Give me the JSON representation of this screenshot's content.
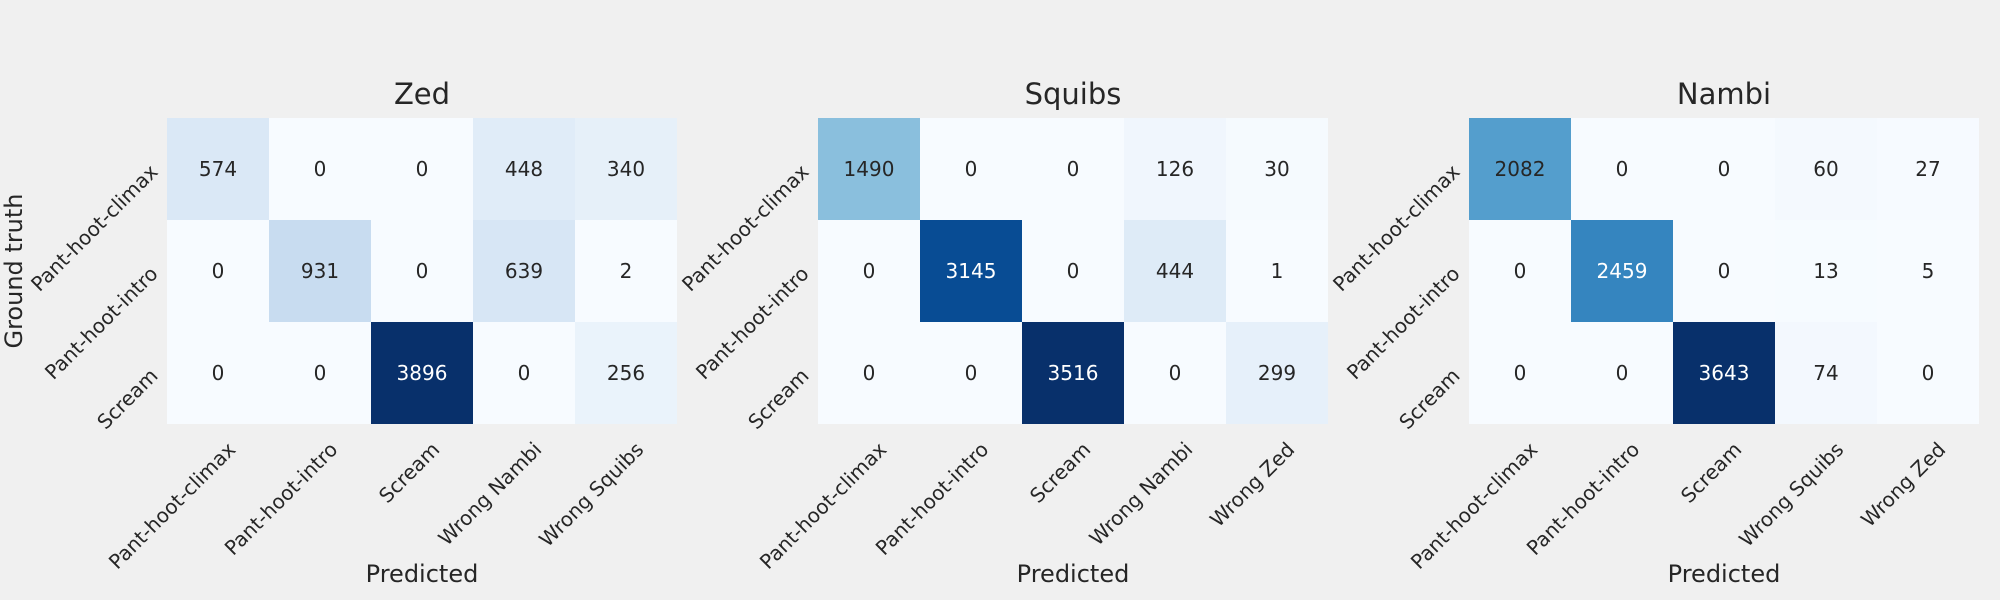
{
  "chart_data": [
    {
      "type": "heatmap",
      "title": "Zed",
      "xlabel": "Predicted",
      "ylabel": "Ground truth",
      "x_categories": [
        "Pant-hoot-climax",
        "Pant-hoot-intro",
        "Scream",
        "Wrong Nambi",
        "Wrong Squibs"
      ],
      "y_categories": [
        "Pant-hoot-climax",
        "Pant-hoot-intro",
        "Scream"
      ],
      "values": [
        [
          574,
          0,
          0,
          448,
          340
        ],
        [
          0,
          931,
          0,
          639,
          2
        ],
        [
          0,
          0,
          3896,
          0,
          256
        ]
      ]
    },
    {
      "type": "heatmap",
      "title": "Squibs",
      "xlabel": "Predicted",
      "ylabel": "",
      "x_categories": [
        "Pant-hoot-climax",
        "Pant-hoot-intro",
        "Scream",
        "Wrong Nambi",
        "Wrong Zed"
      ],
      "y_categories": [
        "Pant-hoot-climax",
        "Pant-hoot-intro",
        "Scream"
      ],
      "values": [
        [
          1490,
          0,
          0,
          126,
          30
        ],
        [
          0,
          3145,
          0,
          444,
          1
        ],
        [
          0,
          0,
          3516,
          0,
          299
        ]
      ]
    },
    {
      "type": "heatmap",
      "title": "Nambi",
      "xlabel": "Predicted",
      "ylabel": "",
      "x_categories": [
        "Pant-hoot-climax",
        "Pant-hoot-intro",
        "Scream",
        "Wrong Squibs",
        "Wrong Zed"
      ],
      "y_categories": [
        "Pant-hoot-climax",
        "Pant-hoot-intro",
        "Scream"
      ],
      "values": [
        [
          2082,
          0,
          0,
          60,
          27
        ],
        [
          0,
          2459,
          0,
          13,
          5
        ],
        [
          0,
          0,
          3643,
          74,
          0
        ]
      ]
    }
  ],
  "colormap": "Blues",
  "background_color": "#f0f0f0"
}
